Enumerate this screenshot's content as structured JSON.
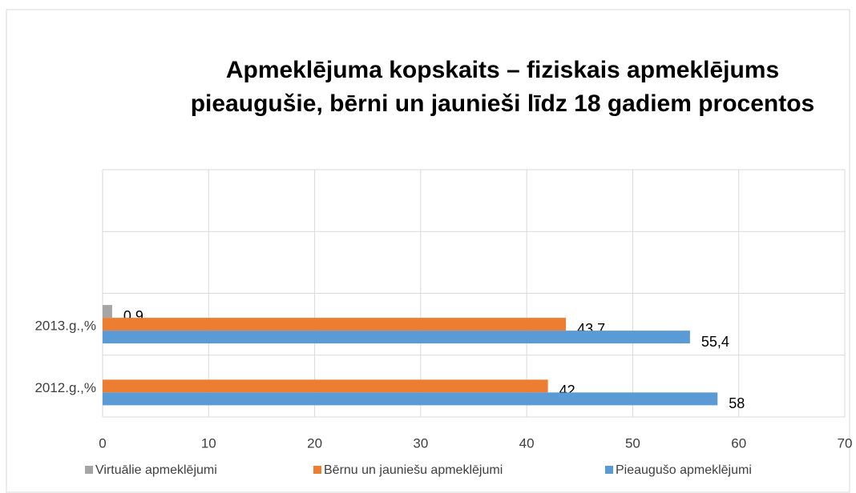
{
  "chart_data": {
    "type": "hbar",
    "title": [
      "Apmeklējuma kopskaits – fiziskais apmeklējums",
      "pieaugušie, bērni un jaunieši līdz 18 gadiem procentos"
    ],
    "categories": [
      "2012.g.,%",
      "2013.g.,%",
      null,
      null
    ],
    "series": [
      {
        "name": "Virtuālie  apmeklējumi",
        "color": "#a5a5a5",
        "values": [
          null,
          0.9,
          null,
          null
        ],
        "value_labels": [
          null,
          "0,9",
          null,
          null
        ]
      },
      {
        "name": "Bērnu un jauniešu apmeklējumi",
        "color": "#ed7d31",
        "values": [
          42,
          43.7,
          null,
          null
        ],
        "value_labels": [
          null,
          "43,7",
          null,
          null
        ]
      },
      {
        "name": "Pieaugušo apmeklējumi",
        "color": "#5b9bd5",
        "values": [
          58,
          55.4,
          null,
          null
        ],
        "value_labels": [
          null,
          "55,4",
          null,
          null
        ]
      }
    ],
    "xlim": [
      0,
      70
    ],
    "xticks": [
      0,
      10,
      20,
      30,
      40,
      50,
      60,
      70
    ],
    "grid": true,
    "legend": "bottom"
  }
}
